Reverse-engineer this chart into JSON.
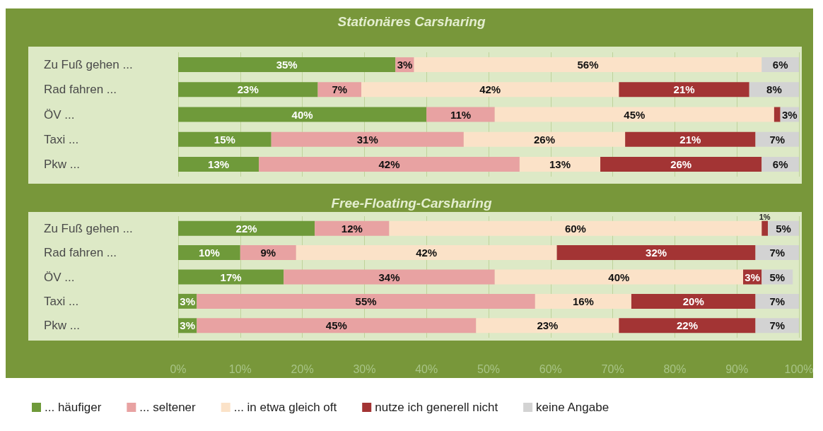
{
  "chart_data": [
    {
      "type": "bar",
      "title": "Stationäres Carsharing",
      "orientation": "horizontal",
      "stacked": true,
      "grid": "x",
      "legend": false,
      "tick_labels": "y",
      "categories": [
        "Zu Fuß gehen ...",
        "Rad fahren ...",
        "ÖV ...",
        "Taxi ...",
        "Pkw ..."
      ],
      "xlim": [
        0,
        100
      ],
      "xticks": [
        {
          "value": 0,
          "label": null
        },
        {
          "value": 10,
          "label": null
        },
        {
          "value": 20,
          "label": null
        },
        {
          "value": 30,
          "label": null
        },
        {
          "value": 40,
          "label": null
        },
        {
          "value": 50,
          "label": null
        },
        {
          "value": 60,
          "label": null
        },
        {
          "value": 70,
          "label": null
        },
        {
          "value": 80,
          "label": null
        },
        {
          "value": 90,
          "label": null
        },
        {
          "value": 100,
          "label": null
        }
      ],
      "series": [
        {
          "color": "#6f9a3a",
          "values": [
            35,
            22.5,
            40,
            15,
            13
          ],
          "value_labels": [
            "35%",
            "23%",
            "40%",
            "15%",
            "13%"
          ]
        },
        {
          "color": "#e8a2a2",
          "values": [
            3,
            7,
            11,
            31,
            42
          ],
          "value_labels": [
            "3%",
            "7%",
            "11%",
            "31%",
            "42%"
          ]
        },
        {
          "color": "#fbe2c8",
          "values": [
            56,
            41.5,
            45,
            26,
            13
          ],
          "value_labels": [
            "56%",
            "42%",
            "45%",
            "26%",
            "13%"
          ]
        },
        {
          "color": "#a33434",
          "values": [
            0,
            21,
            1,
            21,
            26
          ],
          "value_labels": [
            null,
            "21%",
            null,
            "21%",
            "26%"
          ]
        },
        {
          "color": "#d3d3d3",
          "values": [
            6,
            8,
            3,
            7,
            6
          ],
          "value_labels": [
            "6%",
            "8%",
            "3%",
            "7%",
            "6%"
          ]
        }
      ]
    },
    {
      "type": "bar",
      "title": "Free-Floating-Carsharing",
      "orientation": "horizontal",
      "stacked": true,
      "grid": "x",
      "legend": "bottom",
      "categories": [
        "Zu Fuß gehen ...",
        "Rad fahren ...",
        "ÖV ...",
        "Taxi ...",
        "Pkw ..."
      ],
      "xlim": [
        0,
        100
      ],
      "xticks": [
        {
          "value": 0,
          "label": "0%"
        },
        {
          "value": 10,
          "label": "10%"
        },
        {
          "value": 20,
          "label": "20%"
        },
        {
          "value": 30,
          "label": "30%"
        },
        {
          "value": 40,
          "label": "40%"
        },
        {
          "value": 50,
          "label": "50%"
        },
        {
          "value": 60,
          "label": "60%"
        },
        {
          "value": 70,
          "label": "70%"
        },
        {
          "value": 80,
          "label": "80%"
        },
        {
          "value": 90,
          "label": "90%"
        },
        {
          "value": 100,
          "label": "100%"
        }
      ],
      "series": [
        {
          "name": "... häufiger",
          "color": "#6f9a3a",
          "values": [
            22,
            10,
            17,
            3,
            3
          ],
          "value_labels": [
            "22%",
            "10%",
            "17%",
            "3%",
            "3%"
          ]
        },
        {
          "name": "... seltener",
          "color": "#e8a2a2",
          "values": [
            12,
            9,
            34,
            54.5,
            45
          ],
          "value_labels": [
            "12%",
            "9%",
            "34%",
            "55%",
            "45%"
          ]
        },
        {
          "name": "... in etwa gleich oft",
          "color": "#fbe2c8",
          "values": [
            60,
            42,
            40,
            15.5,
            23
          ],
          "value_labels": [
            "60%",
            "42%",
            "40%",
            "16%",
            "23%"
          ]
        },
        {
          "name": "nutze ich generell nicht",
          "color": "#a33434",
          "values": [
            1,
            32,
            3,
            20,
            22
          ],
          "value_labels": [
            "1%",
            "32%",
            "3%",
            "20%",
            "22%"
          ]
        },
        {
          "name": "keine Angabe",
          "color": "#d3d3d3",
          "values": [
            5,
            7,
            5,
            7,
            7
          ],
          "value_labels": [
            "5%",
            "7%",
            "5%",
            "7%",
            "7%"
          ]
        }
      ]
    }
  ]
}
